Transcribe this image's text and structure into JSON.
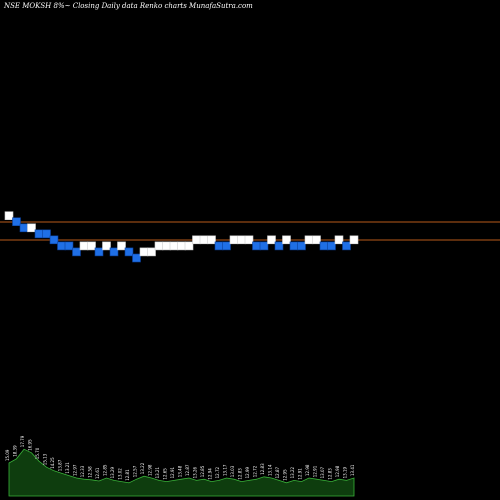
{
  "header": {
    "title": "NSE MOKSH 8%~ Closing Daily data Renko charts MunafaSutra.com"
  },
  "colors": {
    "up": "#ffffff",
    "down": "#1f6fe6",
    "resistance": "#b85a1a",
    "volume": "#0e3d0e",
    "volume_top": "#39b239",
    "background": "#000000"
  },
  "chart_data": {
    "type": "renko",
    "title": "NSE MOKSH 8%~ Closing Daily data Renko charts MunafaSutra.com",
    "brick_levels": [
      17,
      16,
      15,
      15,
      14,
      14,
      13,
      12,
      12,
      11,
      12,
      12,
      11,
      12,
      11,
      12,
      11,
      10,
      11,
      11,
      12,
      12,
      12,
      12,
      12,
      13,
      13,
      13,
      12,
      12,
      13,
      13,
      13,
      12,
      12,
      13,
      12,
      13,
      12,
      12,
      13,
      13,
      12,
      12,
      13,
      12,
      13
    ],
    "brick_colors": [
      "W",
      "B",
      "B",
      "W",
      "B",
      "B",
      "B",
      "B",
      "B",
      "B",
      "W",
      "W",
      "B",
      "W",
      "B",
      "W",
      "B",
      "B",
      "W",
      "W",
      "W",
      "W",
      "W",
      "W",
      "W",
      "W",
      "W",
      "W",
      "B",
      "B",
      "W",
      "W",
      "W",
      "B",
      "B",
      "W",
      "B",
      "W",
      "B",
      "B",
      "W",
      "W",
      "B",
      "B",
      "W",
      "B",
      "W"
    ],
    "brick_size": 8,
    "lines": [
      {
        "name": "resistance",
        "value": 40.5
      },
      {
        "name": "support",
        "value": 38.5
      }
    ],
    "volume": [
      0.55,
      0.62,
      0.78,
      0.72,
      0.58,
      0.48,
      0.42,
      0.38,
      0.34,
      0.3,
      0.28,
      0.27,
      0.25,
      0.3,
      0.26,
      0.24,
      0.22,
      0.28,
      0.33,
      0.3,
      0.26,
      0.24,
      0.26,
      0.28,
      0.3,
      0.26,
      0.28,
      0.24,
      0.26,
      0.3,
      0.28,
      0.24,
      0.26,
      0.28,
      0.32,
      0.3,
      0.26,
      0.22,
      0.26,
      0.24,
      0.3,
      0.28,
      0.26,
      0.24,
      0.28,
      0.26,
      0.3
    ],
    "volume_labels": [
      "15.09",
      "18.39",
      "17.79",
      "16.95",
      "15.70",
      "15.13",
      "14.25",
      "13.87",
      "13.21",
      "12.97",
      "12.33",
      "12.58",
      "12.61",
      "12.85",
      "13.29",
      "13.02",
      "12.81",
      "12.57",
      "13.22",
      "12.98",
      "13.21",
      "12.65",
      "12.91",
      "13.48",
      "12.87",
      "13.26",
      "12.85",
      "12.94",
      "12.72",
      "13.17",
      "13.03",
      "12.83",
      "12.99",
      "12.72",
      "12.83",
      "13.14",
      "12.87",
      "12.95",
      "13.22",
      "12.91",
      "12.98",
      "12.91",
      "13.07",
      "12.83",
      "12.98",
      "13.19",
      "13.41"
    ]
  }
}
